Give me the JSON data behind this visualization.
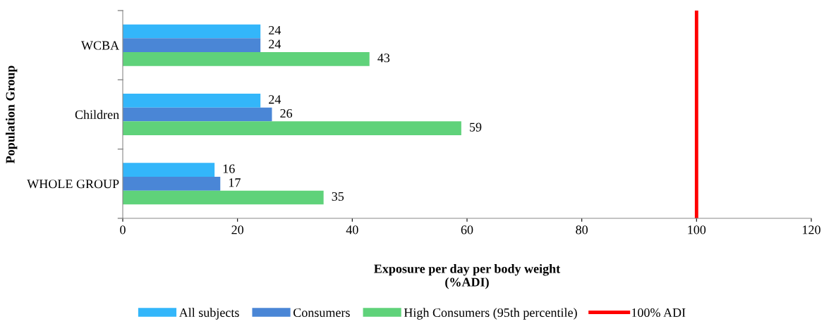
{
  "chart_data": {
    "type": "bar",
    "orientation": "horizontal",
    "xlabel": "Exposure per day per body weight\n(%ADI)",
    "ylabel": "Population Group",
    "categories": [
      "WCBA",
      "Children",
      "WHOLE GROUP"
    ],
    "series": [
      {
        "name": "All subjects",
        "color": "#33b6fa",
        "values": [
          24,
          24,
          16
        ]
      },
      {
        "name": "Consumers",
        "color": "#4a86d6",
        "values": [
          24,
          26,
          17
        ]
      },
      {
        "name": "High Consumers (95th percentile)",
        "color": "#5fd27a",
        "values": [
          43,
          59,
          35
        ]
      }
    ],
    "xlim": [
      0,
      120
    ],
    "xticks": [
      0,
      20,
      40,
      60,
      80,
      100,
      120
    ],
    "ref_lines": [
      {
        "axis": "x",
        "value": 100,
        "label": "100% ADI",
        "color": "#ff0000"
      }
    ],
    "data_labels": true,
    "grid": false,
    "legend": "bottom"
  }
}
